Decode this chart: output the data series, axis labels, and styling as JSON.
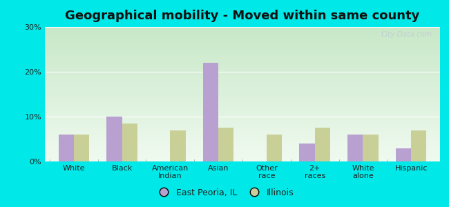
{
  "title": "Geographical mobility - Moved within same county",
  "categories": [
    "White",
    "Black",
    "American\nIndian",
    "Asian",
    "Other\nrace",
    "2+\nraces",
    "White\nalone",
    "Hispanic"
  ],
  "east_peoria": [
    6.0,
    10.0,
    0.0,
    22.0,
    0.0,
    4.0,
    6.0,
    3.0
  ],
  "illinois": [
    6.0,
    8.5,
    7.0,
    7.5,
    6.0,
    7.5,
    6.0,
    7.0
  ],
  "ep_color": "#b8a0d0",
  "il_color": "#c8d098",
  "bg_top_color": "#c8e8c8",
  "bg_bottom_color": "#f0faf0",
  "title_fontsize": 13,
  "tick_fontsize": 8,
  "legend_label_ep": "East Peoria, IL",
  "legend_label_il": "Illinois",
  "ylim": [
    0,
    30
  ],
  "yticks": [
    0,
    10,
    20,
    30
  ],
  "ytick_labels": [
    "0%",
    "10%",
    "20%",
    "30%"
  ],
  "outer_bg": "#00e8e8",
  "watermark": "City-Data.com"
}
